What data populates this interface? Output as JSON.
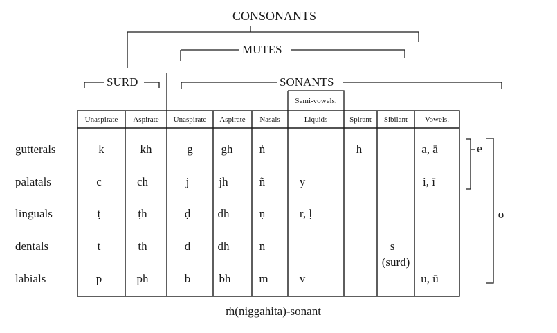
{
  "title": "CONSONANTS",
  "groups": {
    "mutes": "MUTES",
    "surd": "SURD",
    "sonants": "SONANTS",
    "semivowels": "Semi-vowels."
  },
  "columns": [
    "Unaspirate",
    "Aspirate",
    "Unaspirate",
    "Aspirate",
    "Nasals",
    "Liquids",
    "Spirant",
    "Sibilant",
    "Vowels."
  ],
  "rows": [
    {
      "label": "gutterals",
      "cells": [
        "k",
        "kh",
        "g",
        "gh",
        "ṅ",
        "",
        "h",
        "",
        "a, ā"
      ]
    },
    {
      "label": "palatals",
      "cells": [
        "c",
        "ch",
        "j",
        "jh",
        "ñ",
        "y",
        "",
        "",
        "i, ī"
      ]
    },
    {
      "label": "linguals",
      "cells": [
        "ṭ",
        "ṭh",
        "ḍ",
        "dh",
        "ṇ",
        "r, ḷ",
        "",
        "",
        ""
      ]
    },
    {
      "label": "dentals",
      "cells": [
        "t",
        "th",
        "d",
        "dh",
        "n",
        "",
        "",
        "s",
        ""
      ]
    },
    {
      "label": "labials",
      "cells": [
        "p",
        "ph",
        "b",
        "bh",
        "m",
        "v",
        "",
        "",
        "u, ū"
      ]
    }
  ],
  "sibilant_note": "(surd)",
  "brackets": {
    "e": "e",
    "o": "o"
  },
  "footnote": "ṁ(niggahita)-sonant"
}
